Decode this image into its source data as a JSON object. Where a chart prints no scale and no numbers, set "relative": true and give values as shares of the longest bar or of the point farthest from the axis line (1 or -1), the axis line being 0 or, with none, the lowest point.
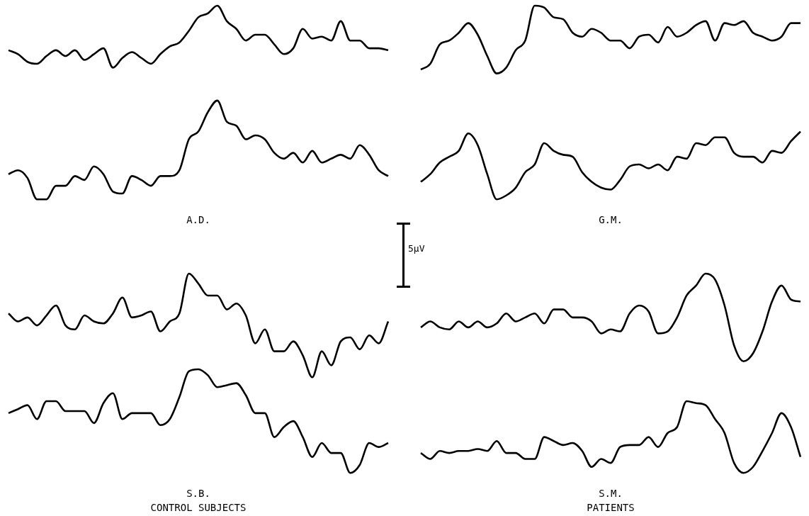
{
  "chart_data": [
    {
      "type": "line",
      "relative": true,
      "xlabel": "A.D.",
      "categories": [
        null,
        null,
        null,
        null,
        null,
        null,
        null,
        null,
        null,
        null,
        null,
        null,
        null,
        null,
        null,
        null,
        null,
        null,
        null,
        null,
        null,
        null,
        null,
        null,
        null,
        null,
        null,
        null,
        null,
        null,
        null,
        null,
        null,
        null,
        null,
        null,
        null,
        null,
        null,
        null,
        null
      ],
      "series": [
        {
          "color": "#000000",
          "values": [
            0.77,
            0.75,
            0.71,
            0.7,
            0.74,
            0.77,
            0.74,
            0.77,
            0.72,
            0.75,
            0.78,
            0.68,
            0.73,
            0.76,
            0.73,
            0.7,
            0.75,
            0.79,
            0.81,
            0.87,
            0.94,
            0.96,
            1.0,
            0.92,
            0.88,
            0.82,
            0.85,
            0.85,
            0.8,
            0.75,
            0.78,
            0.88,
            0.83,
            0.84,
            0.82,
            0.92,
            0.82,
            0.82,
            0.78,
            0.78,
            0.77
          ]
        },
        {
          "color": "#000000",
          "values": [
            0.13,
            0.15,
            0.11,
            0.0,
            0.0,
            0.07,
            0.07,
            0.12,
            0.1,
            0.17,
            0.13,
            0.04,
            0.03,
            0.12,
            0.1,
            0.07,
            0.12,
            0.12,
            0.15,
            0.31,
            0.35,
            0.45,
            0.51,
            0.4,
            0.38,
            0.31,
            0.33,
            0.31,
            0.24,
            0.21,
            0.24,
            0.19,
            0.25,
            0.19,
            0.21,
            0.23,
            0.21,
            0.28,
            0.23,
            0.15,
            0.12
          ]
        }
      ]
    },
    {
      "type": "line",
      "relative": true,
      "xlabel": "G.M.",
      "annotations": [
        "5µV"
      ],
      "categories": [
        null,
        null,
        null,
        null,
        null,
        null,
        null,
        null,
        null,
        null,
        null,
        null,
        null,
        null,
        null,
        null,
        null,
        null,
        null,
        null,
        null,
        null,
        null,
        null,
        null,
        null,
        null,
        null,
        null,
        null,
        null,
        null,
        null,
        null,
        null,
        null,
        null,
        null,
        null,
        null,
        null
      ],
      "series": [
        {
          "color": "#000000",
          "values": [
            0.67,
            0.7,
            0.8,
            0.82,
            0.86,
            0.91,
            0.85,
            0.74,
            0.65,
            0.68,
            0.77,
            0.82,
            1.0,
            0.99,
            0.94,
            0.93,
            0.86,
            0.84,
            0.88,
            0.86,
            0.82,
            0.82,
            0.78,
            0.84,
            0.85,
            0.81,
            0.89,
            0.84,
            0.86,
            0.9,
            0.92,
            0.82,
            0.91,
            0.9,
            0.92,
            0.86,
            0.84,
            0.82,
            0.84,
            0.91,
            0.91
          ]
        },
        {
          "color": "#000000",
          "values": [
            0.09,
            0.13,
            0.19,
            0.22,
            0.25,
            0.34,
            0.28,
            0.13,
            0.0,
            0.02,
            0.06,
            0.14,
            0.18,
            0.29,
            0.25,
            0.23,
            0.22,
            0.14,
            0.09,
            0.06,
            0.05,
            0.1,
            0.17,
            0.18,
            0.16,
            0.18,
            0.15,
            0.22,
            0.21,
            0.29,
            0.28,
            0.32,
            0.32,
            0.24,
            0.22,
            0.22,
            0.19,
            0.25,
            0.24,
            0.3,
            0.35
          ]
        }
      ]
    },
    {
      "type": "line",
      "relative": true,
      "xlabel": "S.B.",
      "annotations": [
        "CONTROL SUBJECTS"
      ],
      "categories": [
        null,
        null,
        null,
        null,
        null,
        null,
        null,
        null,
        null,
        null,
        null,
        null,
        null,
        null,
        null,
        null,
        null,
        null,
        null,
        null,
        null,
        null,
        null,
        null,
        null,
        null,
        null,
        null,
        null,
        null,
        null,
        null,
        null,
        null,
        null,
        null,
        null,
        null,
        null,
        null,
        null
      ],
      "series": [
        {
          "color": "#000000",
          "values": [
            0.8,
            0.76,
            0.78,
            0.74,
            0.79,
            0.84,
            0.74,
            0.72,
            0.79,
            0.76,
            0.75,
            0.8,
            0.88,
            0.78,
            0.79,
            0.81,
            0.71,
            0.76,
            0.8,
            1.0,
            0.95,
            0.89,
            0.89,
            0.82,
            0.85,
            0.79,
            0.65,
            0.72,
            0.61,
            0.61,
            0.66,
            0.59,
            0.48,
            0.61,
            0.54,
            0.66,
            0.68,
            0.62,
            0.69,
            0.65,
            0.76
          ]
        },
        {
          "color": "#000000",
          "values": [
            0.3,
            0.32,
            0.34,
            0.27,
            0.36,
            0.36,
            0.31,
            0.31,
            0.31,
            0.25,
            0.35,
            0.4,
            0.27,
            0.3,
            0.3,
            0.3,
            0.24,
            0.27,
            0.38,
            0.51,
            0.52,
            0.49,
            0.43,
            0.44,
            0.45,
            0.39,
            0.3,
            0.3,
            0.18,
            0.23,
            0.26,
            0.18,
            0.08,
            0.15,
            0.1,
            0.1,
            0.0,
            0.04,
            0.15,
            0.13,
            0.15
          ]
        }
      ]
    },
    {
      "type": "line",
      "relative": true,
      "xlabel": "S.M.",
      "annotations": [
        "PATIENTS"
      ],
      "categories": [
        null,
        null,
        null,
        null,
        null,
        null,
        null,
        null,
        null,
        null,
        null,
        null,
        null,
        null,
        null,
        null,
        null,
        null,
        null,
        null,
        null,
        null,
        null,
        null,
        null,
        null,
        null,
        null,
        null,
        null,
        null,
        null,
        null,
        null,
        null,
        null,
        null,
        null,
        null,
        null,
        null
      ],
      "series": [
        {
          "color": "#000000",
          "values": [
            0.73,
            0.76,
            0.73,
            0.72,
            0.76,
            0.73,
            0.76,
            0.73,
            0.75,
            0.8,
            0.76,
            0.78,
            0.8,
            0.75,
            0.82,
            0.82,
            0.78,
            0.78,
            0.76,
            0.7,
            0.72,
            0.71,
            0.8,
            0.84,
            0.81,
            0.7,
            0.71,
            0.78,
            0.89,
            0.94,
            1.0,
            0.97,
            0.84,
            0.64,
            0.56,
            0.6,
            0.71,
            0.86,
            0.94,
            0.87,
            0.86
          ]
        },
        {
          "color": "#000000",
          "values": [
            0.1,
            0.07,
            0.11,
            0.1,
            0.11,
            0.11,
            0.12,
            0.11,
            0.16,
            0.1,
            0.1,
            0.07,
            0.07,
            0.18,
            0.16,
            0.14,
            0.15,
            0.11,
            0.03,
            0.07,
            0.05,
            0.13,
            0.14,
            0.14,
            0.18,
            0.13,
            0.2,
            0.23,
            0.36,
            0.35,
            0.34,
            0.27,
            0.2,
            0.05,
            0.0,
            0.03,
            0.11,
            0.2,
            0.3,
            0.23,
            0.08
          ]
        }
      ]
    }
  ]
}
